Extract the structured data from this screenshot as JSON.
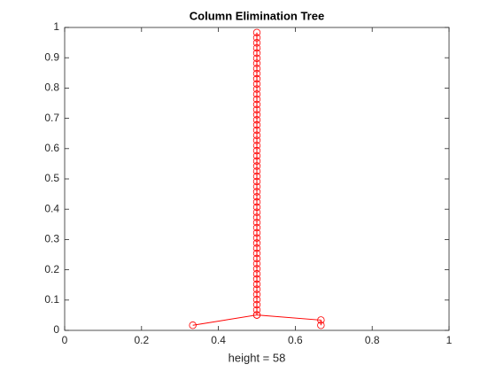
{
  "chart_data": {
    "type": "line",
    "title": "Column Elimination Tree",
    "x_label": "height = 58",
    "marker": "circle",
    "color": "#ff0000",
    "series": [
      {
        "color": "#ff0000",
        "x": [
          0.3333,
          0.5,
          0.5,
          0.5,
          0.5,
          0.5,
          0.5,
          0.5,
          0.5,
          0.5,
          0.5,
          0.5,
          0.5,
          0.5,
          0.5,
          0.5,
          0.5,
          0.5,
          0.5,
          0.5,
          0.5,
          0.5,
          0.5,
          0.5,
          0.5,
          0.5,
          0.5,
          0.5,
          0.5,
          0.5,
          0.5,
          0.5,
          0.5,
          0.5,
          0.5,
          0.5,
          0.5,
          0.5,
          0.5,
          0.5,
          0.5,
          0.5,
          0.5,
          0.5,
          0.5,
          0.5,
          0.5,
          0.5,
          0.5,
          0.5,
          0.5,
          0.5,
          0.5,
          0.5,
          0.5,
          0.5,
          0.5
        ],
        "values": [
          0.0169,
          0.0508,
          0.0678,
          0.0847,
          0.1017,
          0.1186,
          0.1356,
          0.1525,
          0.1695,
          0.1864,
          0.2034,
          0.2203,
          0.2373,
          0.2542,
          0.2712,
          0.2881,
          0.3051,
          0.322,
          0.339,
          0.3559,
          0.3729,
          0.3898,
          0.4068,
          0.4237,
          0.4407,
          0.4576,
          0.4746,
          0.4915,
          0.5085,
          0.5254,
          0.5424,
          0.5593,
          0.5763,
          0.5932,
          0.6102,
          0.6271,
          0.6441,
          0.661,
          0.678,
          0.6949,
          0.7119,
          0.7288,
          0.7458,
          0.7627,
          0.7797,
          0.7966,
          0.8136,
          0.8305,
          0.8475,
          0.8644,
          0.8814,
          0.8983,
          0.9153,
          0.9322,
          0.9492,
          0.9661,
          0.9831
        ]
      },
      {
        "color": "#ff0000",
        "x": [
          0.6667,
          0.6667,
          0.5
        ],
        "values": [
          0.0169,
          0.0339,
          0.0508
        ]
      }
    ],
    "xlim": [
      0,
      1
    ],
    "ylim": [
      0,
      1
    ],
    "xticks": [
      0,
      0.2,
      0.4,
      0.6,
      0.8,
      1
    ],
    "yticks": [
      0,
      0.1,
      0.2,
      0.3,
      0.4,
      0.5,
      0.6,
      0.7,
      0.8,
      0.9,
      1
    ]
  }
}
